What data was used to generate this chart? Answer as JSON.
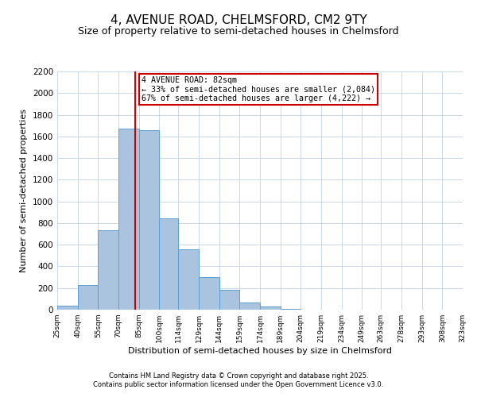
{
  "title": "4, AVENUE ROAD, CHELMSFORD, CM2 9TY",
  "subtitle": "Size of property relative to semi-detached houses in Chelmsford",
  "xlabel": "Distribution of semi-detached houses by size in Chelmsford",
  "ylabel": "Number of semi-detached properties",
  "footnote1": "Contains HM Land Registry data © Crown copyright and database right 2025.",
  "footnote2": "Contains public sector information licensed under the Open Government Licence v3.0.",
  "bin_labels": [
    "25sqm",
    "40sqm",
    "55sqm",
    "70sqm",
    "85sqm",
    "100sqm",
    "114sqm",
    "129sqm",
    "144sqm",
    "159sqm",
    "174sqm",
    "189sqm",
    "204sqm",
    "219sqm",
    "234sqm",
    "249sqm",
    "263sqm",
    "278sqm",
    "293sqm",
    "308sqm",
    "323sqm"
  ],
  "bin_edges": [
    25,
    40,
    55,
    70,
    85,
    100,
    114,
    129,
    144,
    159,
    174,
    189,
    204,
    219,
    234,
    249,
    263,
    278,
    293,
    308,
    323
  ],
  "bar_heights": [
    40,
    225,
    730,
    1670,
    1655,
    840,
    560,
    300,
    180,
    65,
    30,
    10,
    0,
    0,
    0,
    0,
    0,
    0,
    0,
    0
  ],
  "bar_color": "#aac4e0",
  "bar_edgecolor": "#5a9fd4",
  "property_value": 82,
  "vline_color": "#cc0000",
  "annotation_line1": "4 AVENUE ROAD: 82sqm",
  "annotation_line2": "← 33% of semi-detached houses are smaller (2,084)",
  "annotation_line3": "67% of semi-detached houses are larger (4,222) →",
  "annotation_box_edgecolor": "#cc0000",
  "ylim": [
    0,
    2200
  ],
  "yticks": [
    0,
    200,
    400,
    600,
    800,
    1000,
    1200,
    1400,
    1600,
    1800,
    2000,
    2200
  ],
  "background_color": "#ffffff",
  "grid_color": "#c8d8e8",
  "title_fontsize": 11,
  "subtitle_fontsize": 9,
  "footnote_fontsize": 6
}
